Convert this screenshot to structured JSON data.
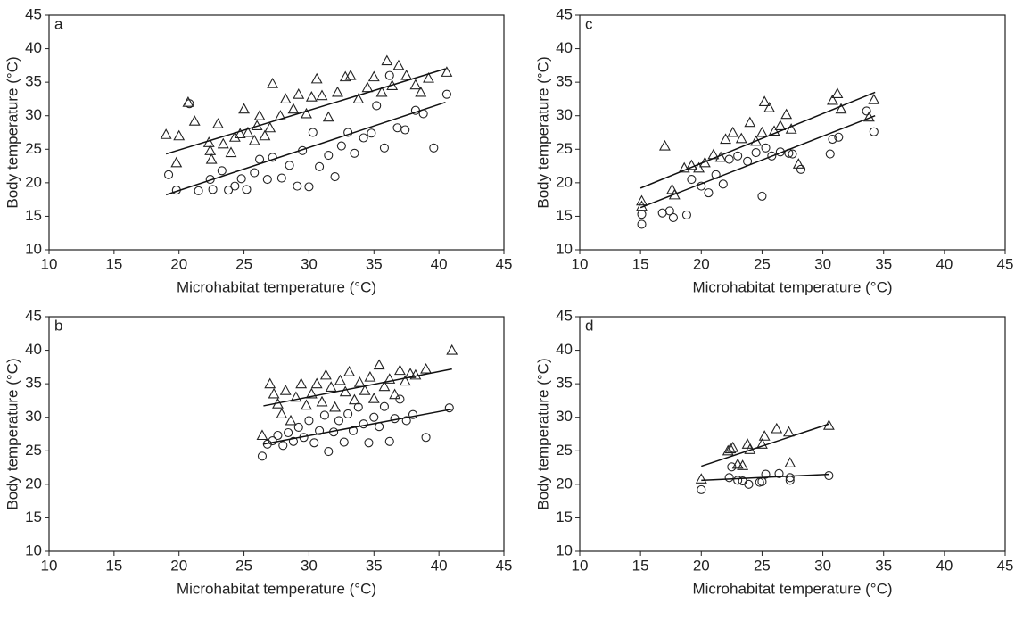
{
  "chart_data": [
    {
      "type": "scatter",
      "label": "a",
      "xlabel": "Microhabitat temperature (°C)",
      "ylabel": "Body temperature (°C)",
      "xlim": [
        10,
        45
      ],
      "ylim": [
        10,
        45
      ],
      "xticks": [
        10,
        15,
        20,
        25,
        30,
        35,
        40,
        45
      ],
      "yticks": [
        10,
        15,
        20,
        25,
        30,
        35,
        40,
        45
      ],
      "series": [
        {
          "marker": "triangle",
          "color": "#222",
          "x": [
            19,
            19.8,
            20,
            20.7,
            21.2,
            22.3,
            22.4,
            22.5,
            23,
            23.4,
            24,
            24.3,
            24.7,
            25,
            25.3,
            25.8,
            26,
            26.2,
            26.6,
            27,
            27.2,
            27.8,
            28.2,
            28.8,
            29.2,
            29.8,
            30.2,
            30.6,
            31,
            31.5,
            32.2,
            32.8,
            33.2,
            33.8,
            34.5,
            35,
            35.6,
            36,
            36.4,
            36.9,
            37.5,
            38.2,
            38.6,
            39.2,
            40.6
          ],
          "y": [
            27.2,
            23,
            27,
            32,
            29.2,
            26,
            24.8,
            23.5,
            28.8,
            25.8,
            24.5,
            26.8,
            27.3,
            31,
            27.5,
            26.3,
            28.5,
            30,
            27,
            28.2,
            34.8,
            30,
            32.5,
            31,
            33.2,
            30.3,
            32.8,
            35.5,
            33,
            29.8,
            33.5,
            35.8,
            36,
            32.5,
            34.2,
            35.8,
            33.5,
            38.2,
            34.5,
            37.5,
            36,
            34.6,
            33.5,
            35.6,
            36.5
          ],
          "fit": {
            "x": [
              19,
              40.5
            ],
            "y": [
              24.3,
              37
            ]
          }
        },
        {
          "marker": "circle",
          "color": "#222",
          "x": [
            19.2,
            19.8,
            20.8,
            21.5,
            22.4,
            22.6,
            23.3,
            23.8,
            24.3,
            24.8,
            25.2,
            25.8,
            26.2,
            26.8,
            27.2,
            27.9,
            28.5,
            29.1,
            29.5,
            30,
            30.3,
            30.8,
            31.5,
            32,
            32.5,
            33,
            33.5,
            34.2,
            34.8,
            35.2,
            35.8,
            36.2,
            36.8,
            37.4,
            38.2,
            38.8,
            39.6,
            40.6
          ],
          "y": [
            21.2,
            18.9,
            31.8,
            18.8,
            20.5,
            19,
            21.8,
            18.9,
            19.5,
            20.6,
            19,
            21.5,
            23.5,
            20.5,
            23.8,
            20.7,
            22.6,
            19.5,
            24.8,
            19.4,
            27.5,
            22.4,
            24.1,
            20.9,
            25.5,
            27.5,
            24.4,
            26.7,
            27.4,
            31.5,
            25.2,
            36,
            28.2,
            27.9,
            30.8,
            30.3,
            25.2,
            33.2
          ],
          "fit": {
            "x": [
              19,
              40.5
            ],
            "y": [
              18.2,
              32
            ]
          }
        }
      ]
    },
    {
      "type": "scatter",
      "label": "c",
      "xlabel": "Microhabitat temperature (°C)",
      "ylabel": "Body temperature (°C)",
      "xlim": [
        10,
        45
      ],
      "ylim": [
        10,
        45
      ],
      "xticks": [
        10,
        15,
        20,
        25,
        30,
        35,
        40,
        45
      ],
      "yticks": [
        10,
        15,
        20,
        25,
        30,
        35,
        40,
        45
      ],
      "series": [
        {
          "marker": "triangle",
          "color": "#222",
          "x": [
            15.1,
            15.1,
            17,
            17.6,
            17.8,
            18.6,
            19.2,
            19.8,
            20.3,
            21,
            21.6,
            22,
            22.6,
            23.3,
            24,
            24.5,
            25,
            25.2,
            25.6,
            26,
            26.5,
            27,
            27.4,
            28,
            30.8,
            31.2,
            31.5,
            33.8,
            34.2
          ],
          "y": [
            17.3,
            16.5,
            25.5,
            19,
            18.2,
            22.2,
            22.6,
            22.2,
            23,
            24.2,
            23.8,
            26.5,
            27.5,
            26.6,
            29,
            26.2,
            27.5,
            32.1,
            31.2,
            27.7,
            28.5,
            30.2,
            28,
            22.8,
            32.3,
            33.3,
            31,
            29.8,
            32.4
          ],
          "fit": {
            "x": [
              15,
              34.3
            ],
            "y": [
              19.2,
              33.5
            ]
          }
        },
        {
          "marker": "circle",
          "color": "#222",
          "x": [
            15.1,
            15.1,
            16.8,
            17.4,
            17.7,
            18.8,
            19.2,
            20,
            20.6,
            21.2,
            21.8,
            22.3,
            23,
            23.8,
            24.5,
            25,
            25.3,
            25.8,
            26.5,
            27.2,
            27.5,
            28.2,
            30.6,
            30.8,
            31.3,
            33.6,
            34.2
          ],
          "y": [
            13.8,
            15.3,
            15.5,
            15.8,
            14.8,
            15.2,
            20.5,
            19.5,
            18.5,
            21.2,
            19.8,
            23.5,
            24,
            23.2,
            24.5,
            18,
            25.2,
            24,
            24.6,
            24.4,
            24.3,
            22,
            24.3,
            26.5,
            26.8,
            30.7,
            27.6
          ],
          "fit": {
            "x": [
              15,
              34.3
            ],
            "y": [
              16.3,
              30
            ]
          }
        }
      ]
    },
    {
      "type": "scatter",
      "label": "b",
      "xlabel": "Microhabitat temperature (°C)",
      "ylabel": "Body temperature (°C)",
      "xlim": [
        10,
        45
      ],
      "ylim": [
        10,
        45
      ],
      "xticks": [
        10,
        15,
        20,
        25,
        30,
        35,
        40,
        45
      ],
      "yticks": [
        10,
        15,
        20,
        25,
        30,
        35,
        40,
        45
      ],
      "series": [
        {
          "marker": "triangle",
          "color": "#222",
          "x": [
            26.4,
            27,
            27.3,
            27.6,
            27.9,
            28.2,
            28.6,
            29,
            29.4,
            29.8,
            30.2,
            30.6,
            31,
            31.3,
            31.7,
            32,
            32.4,
            32.8,
            33.1,
            33.5,
            33.9,
            34.3,
            34.7,
            35,
            35.4,
            35.8,
            36.2,
            36.6,
            37,
            37.4,
            37.8,
            38.2,
            39,
            41
          ],
          "y": [
            27.3,
            35,
            33.5,
            32,
            30.5,
            34,
            29.5,
            33,
            35,
            31.8,
            33.5,
            35,
            32.3,
            36.3,
            34.5,
            31.5,
            35.5,
            33.8,
            36.8,
            32.6,
            35.2,
            34,
            36,
            32.8,
            37.8,
            34.6,
            35.7,
            33.4,
            37,
            35.4,
            36.5,
            36.3,
            37.2,
            40
          ],
          "fit": {
            "x": [
              26.5,
              41
            ],
            "y": [
              31.7,
              37.2
            ]
          }
        },
        {
          "marker": "circle",
          "color": "#222",
          "x": [
            26.4,
            26.8,
            27.2,
            27.6,
            28,
            28.4,
            28.8,
            29.2,
            29.6,
            30,
            30.4,
            30.8,
            31.2,
            31.5,
            31.9,
            32.3,
            32.7,
            33,
            33.4,
            33.8,
            34.2,
            34.6,
            35,
            35.4,
            35.8,
            36.2,
            36.6,
            37,
            37.5,
            38,
            39,
            40.8
          ],
          "y": [
            24.2,
            26,
            26.5,
            27.3,
            25.8,
            27.7,
            26.4,
            28.5,
            27,
            29.5,
            26.2,
            28,
            30.3,
            24.9,
            27.8,
            29.5,
            26.3,
            30.5,
            28,
            31.5,
            29,
            26.2,
            30,
            28.6,
            31.6,
            26.4,
            29.8,
            32.7,
            29.5,
            30.4,
            27,
            31.4
          ],
          "fit": {
            "x": [
              26.5,
              41
            ],
            "y": [
              26,
              31.2
            ]
          }
        }
      ]
    },
    {
      "type": "scatter",
      "label": "d",
      "xlabel": "Microhabitat temperature (°C)",
      "ylabel": "Body temperature (°C)",
      "xlim": [
        10,
        45
      ],
      "ylim": [
        10,
        45
      ],
      "xticks": [
        10,
        15,
        20,
        25,
        30,
        35,
        40,
        45
      ],
      "yticks": [
        10,
        15,
        20,
        25,
        30,
        35,
        40,
        45
      ],
      "series": [
        {
          "marker": "triangle",
          "color": "#222",
          "x": [
            20,
            22.2,
            22.4,
            22.6,
            23,
            23.4,
            23.8,
            24,
            25,
            25.2,
            26.2,
            27.2,
            27.3,
            30.5
          ],
          "y": [
            20.8,
            25,
            25.3,
            25.5,
            23,
            22.8,
            26,
            25.2,
            26,
            27.2,
            28.3,
            27.8,
            23.2,
            28.8
          ],
          "fit": {
            "x": [
              20,
              30.5
            ],
            "y": [
              22.7,
              29
            ]
          }
        },
        {
          "marker": "circle",
          "color": "#222",
          "x": [
            20,
            22.3,
            22.5,
            23,
            23.4,
            23.9,
            24.8,
            25,
            25.3,
            26.4,
            27.3,
            27.3,
            30.5
          ],
          "y": [
            19.2,
            21,
            22.6,
            20.6,
            20.5,
            20,
            20.3,
            20.4,
            21.5,
            21.6,
            21,
            20.6,
            21.3
          ],
          "fit": {
            "x": [
              20,
              30.5
            ],
            "y": [
              20.6,
              21.5
            ]
          }
        }
      ]
    }
  ]
}
